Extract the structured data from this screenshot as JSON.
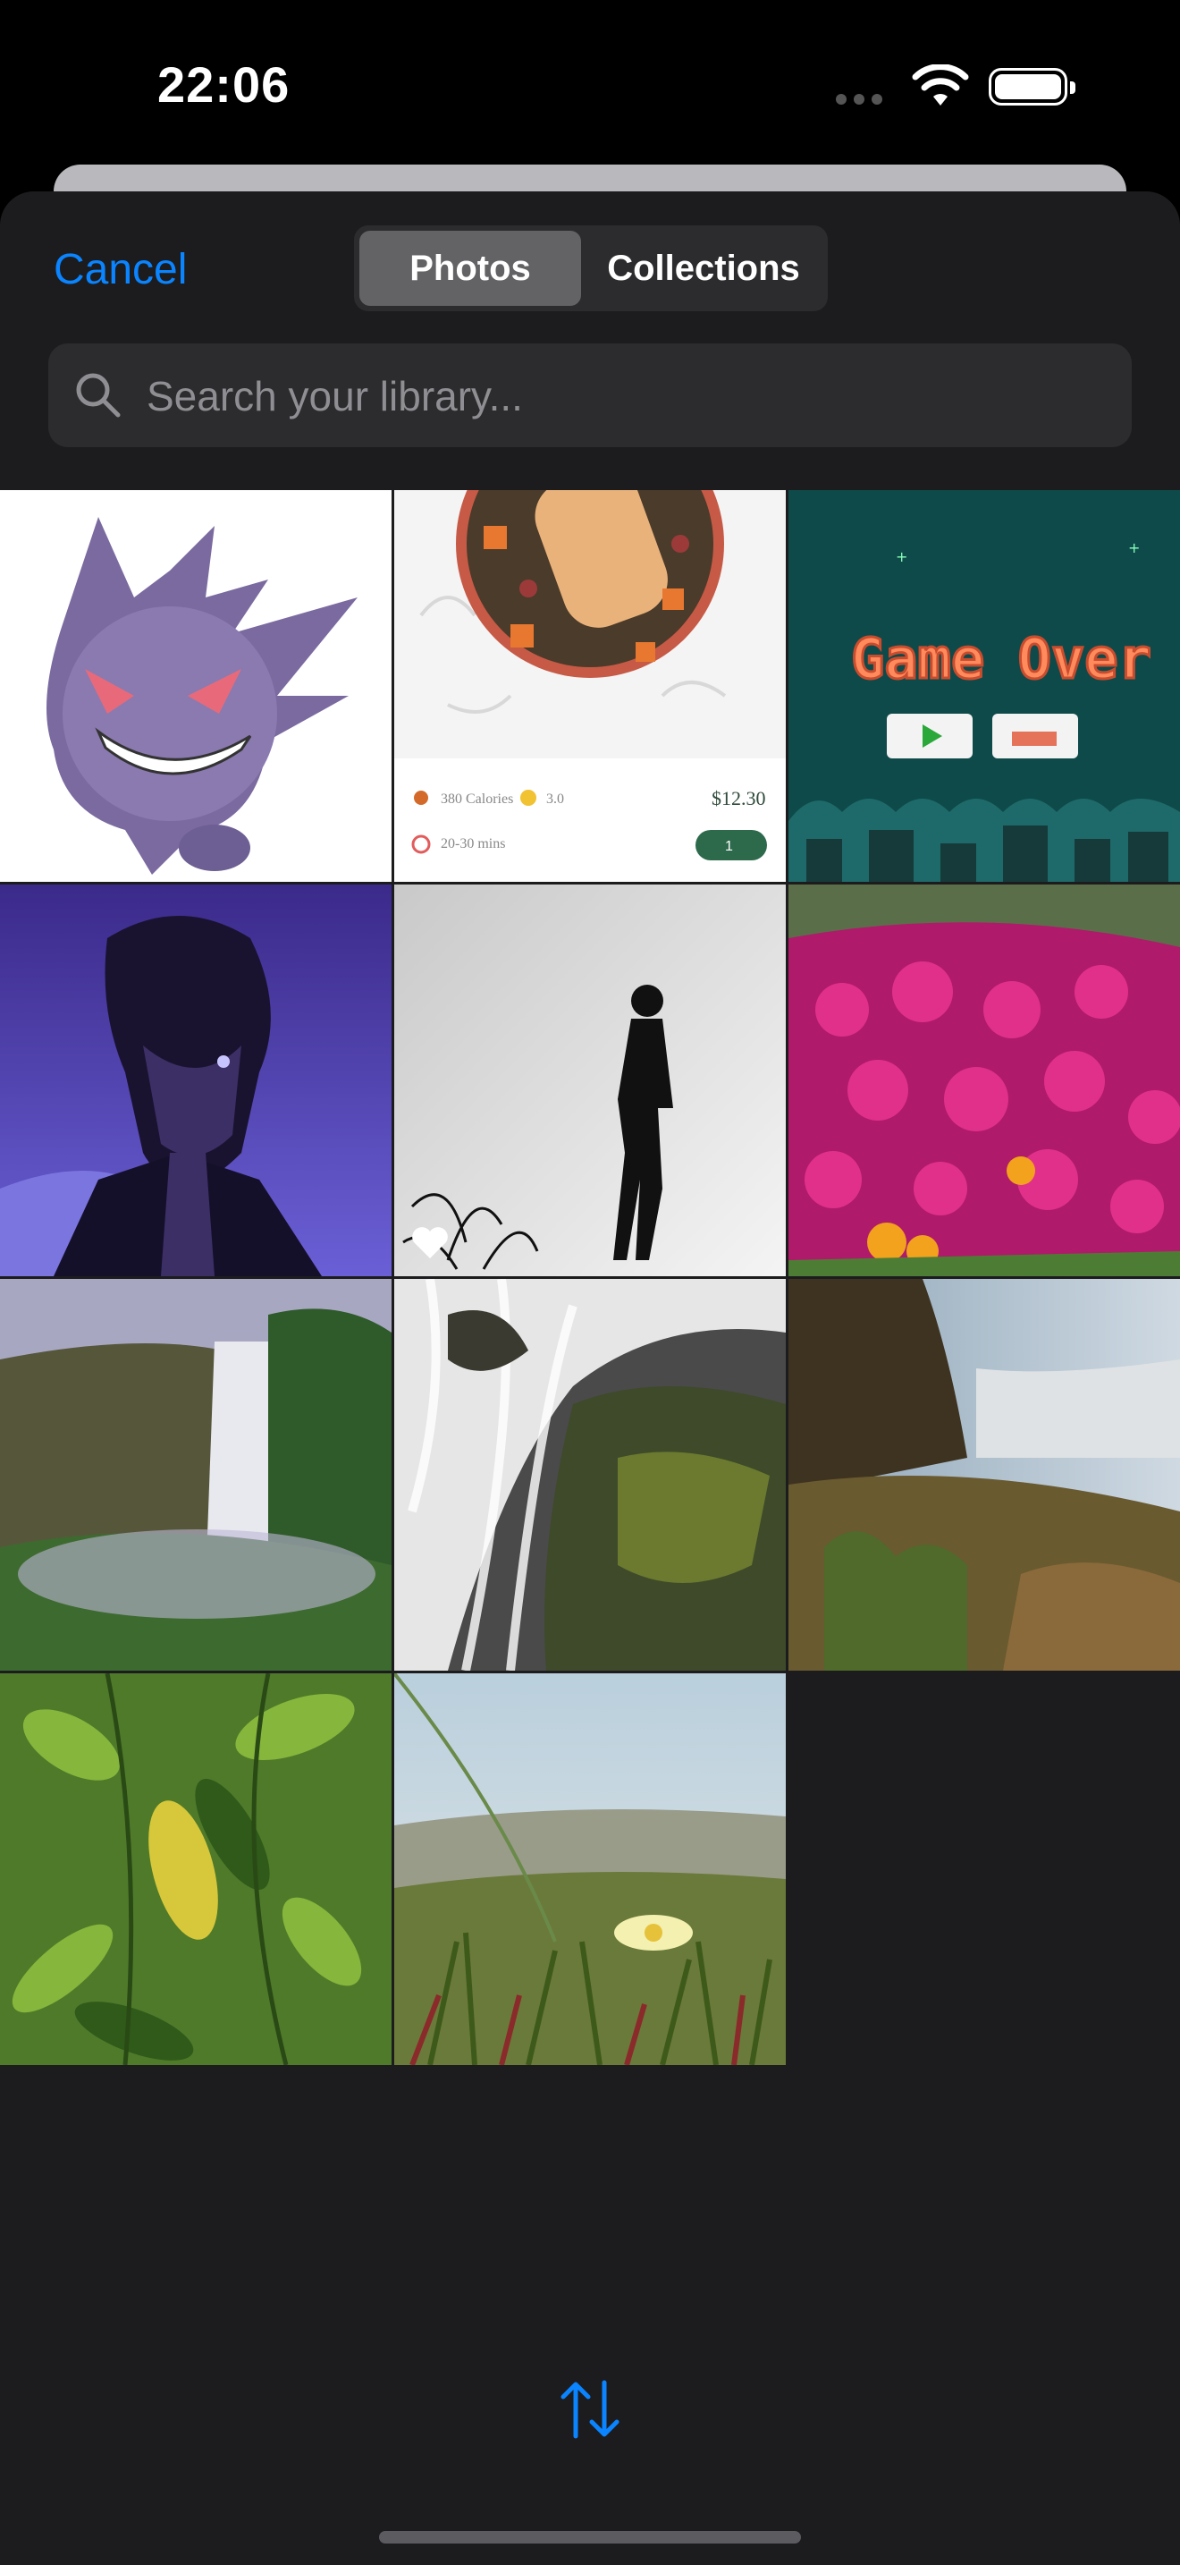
{
  "status_bar": {
    "time": "22:06"
  },
  "header": {
    "cancel_label": "Cancel",
    "tabs": [
      {
        "label": "Photos",
        "selected": true
      },
      {
        "label": "Collections",
        "selected": false
      }
    ]
  },
  "search": {
    "placeholder": "Search your library...",
    "value": ""
  },
  "photos": [
    {
      "name": "Gengar illustration"
    },
    {
      "name": "Salad bowl recipe card",
      "calories": "380 Calories",
      "rating": "3.0",
      "price": "$12.30",
      "time": "20-30 mins",
      "qty": "1"
    },
    {
      "name": "Game Over screen",
      "title": "Game Over"
    },
    {
      "name": "Anime character with glowing eye"
    },
    {
      "name": "Silhouette on white",
      "favorite": true
    },
    {
      "name": "Pink flowers field"
    },
    {
      "name": "Waterfall valley"
    },
    {
      "name": "Rocky waterfall long exposure"
    },
    {
      "name": "Waterfall at sunset"
    },
    {
      "name": "Green leaves"
    },
    {
      "name": "Beach grass flower"
    }
  ],
  "colors": {
    "accent": "#0a84ff",
    "sheet": "#1c1c1e",
    "field": "#2c2c2e"
  },
  "icons": {
    "search": "magnifier-icon",
    "sort": "arrows-up-down-icon"
  }
}
